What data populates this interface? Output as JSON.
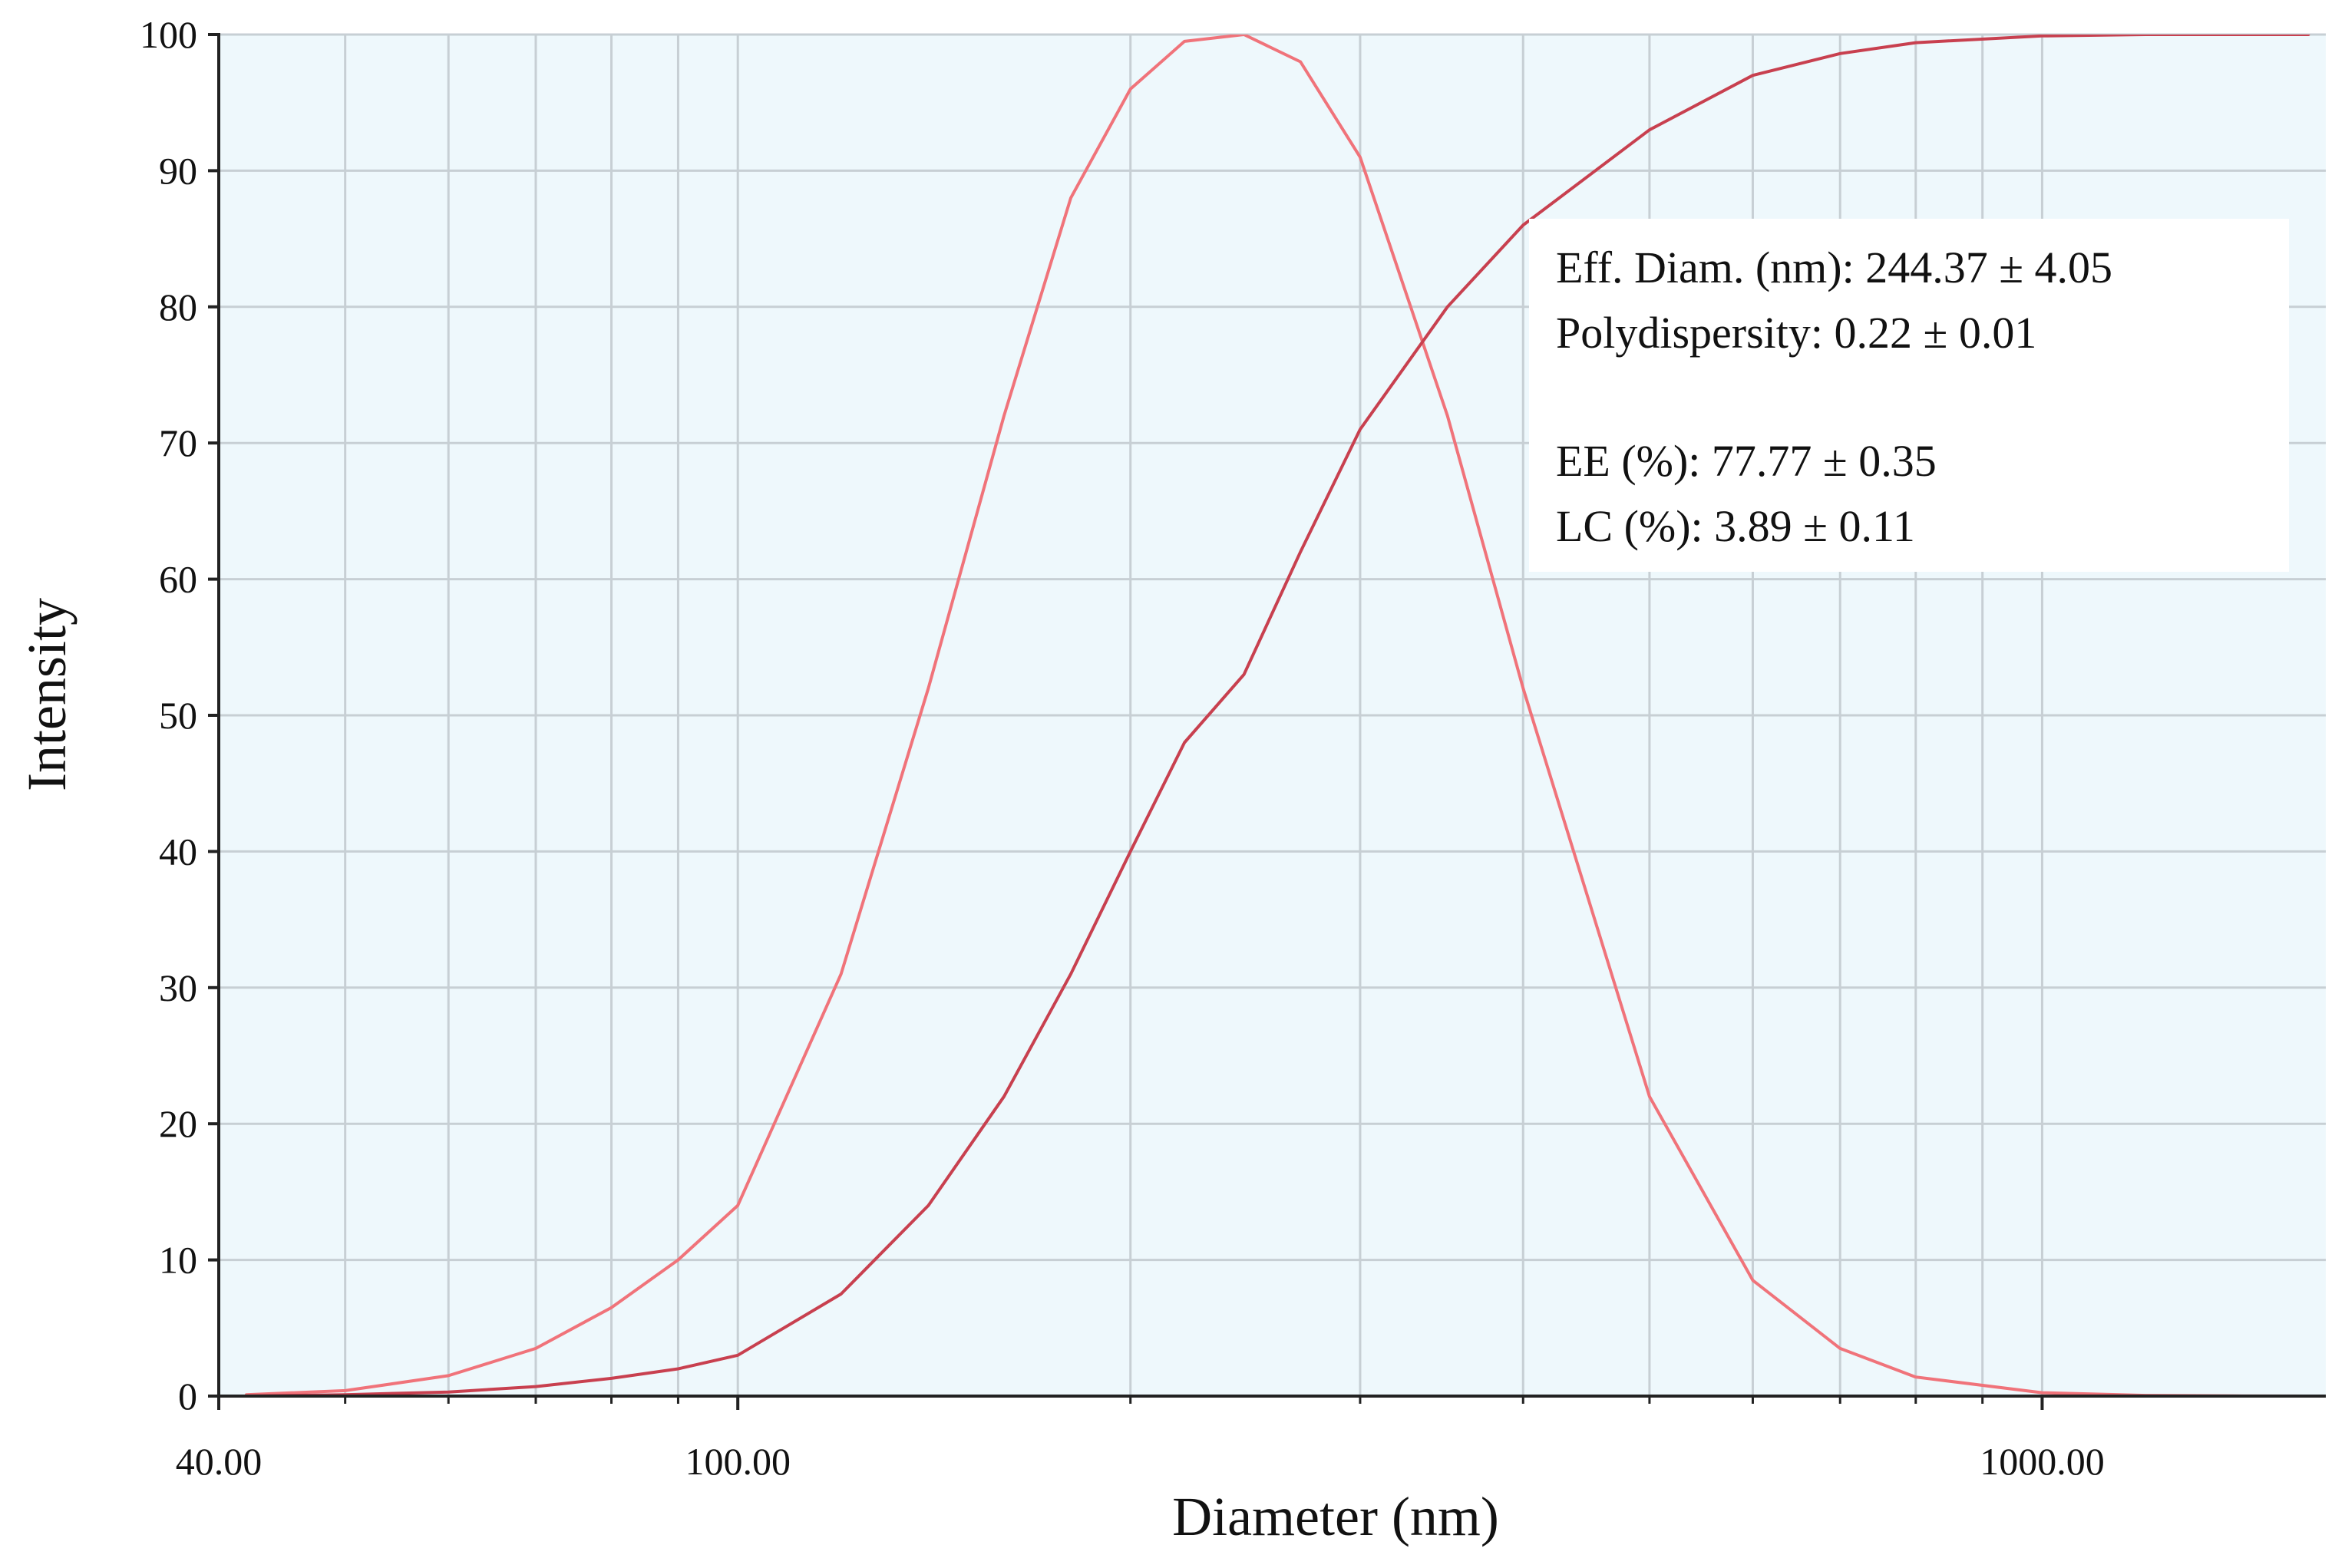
{
  "chart_data": {
    "type": "line",
    "xlabel": "Diameter (nm)",
    "ylabel": "Intensity",
    "xscale": "log",
    "xlim": [
      40,
      1650
    ],
    "ylim": [
      0,
      100
    ],
    "x_ticks": [
      {
        "value": 40,
        "label": "40.00"
      },
      {
        "value": 100,
        "label": "100.00"
      },
      {
        "value": 1000,
        "label": "1000.00"
      }
    ],
    "y_ticks": [
      0,
      10,
      20,
      30,
      40,
      50,
      60,
      70,
      80,
      90,
      100
    ],
    "grid": true,
    "background_color": "#eef8fc",
    "series": [
      {
        "color": "#f0737a",
        "x": [
          42,
          50,
          60,
          70,
          80,
          90,
          100,
          120,
          140,
          160,
          180,
          200,
          220,
          244.37,
          270,
          300,
          350,
          400,
          500,
          600,
          700,
          800,
          1000,
          1200,
          1400,
          1600
        ],
        "y": [
          0.1,
          0.4,
          1.5,
          3.5,
          6.5,
          10,
          14,
          31,
          52,
          72,
          88,
          96,
          99.5,
          100,
          98,
          91,
          72,
          52,
          22,
          8.5,
          3.5,
          1.4,
          0.25,
          0.05,
          0.01,
          0
        ]
      },
      {
        "color": "#c8404f",
        "x": [
          42,
          50,
          60,
          70,
          80,
          90,
          100,
          120,
          140,
          160,
          180,
          200,
          220,
          244.37,
          270,
          300,
          350,
          400,
          500,
          600,
          700,
          800,
          1000,
          1200,
          1400,
          1600
        ],
        "y": [
          0,
          0.1,
          0.3,
          0.7,
          1.3,
          2,
          3,
          7.5,
          14,
          22,
          31,
          40,
          48,
          53,
          62,
          71,
          80,
          86,
          93,
          97,
          98.6,
          99.4,
          99.9,
          100,
          100,
          100
        ]
      }
    ],
    "annotation": {
      "lines": [
        "Eff. Diam. (nm): 244.37  ± 4.05",
        "Polydispersity:  0.22  ± 0.01",
        "",
        "EE (%): 77.77  ± 0.35",
        "LC (%): 3.89  ± 0.11"
      ],
      "placement": "top-right"
    }
  }
}
